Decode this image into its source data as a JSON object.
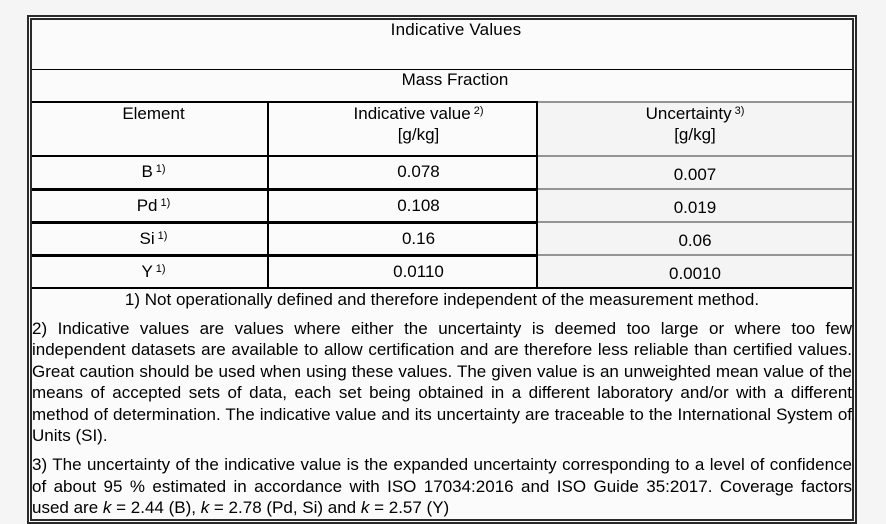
{
  "colors": {
    "page_background": "#f5f5f5",
    "table_background": "#fbfbfb",
    "uncertainty_column_background": "#f4f4f4",
    "border_black": "#000000",
    "border_gray": "#949494",
    "outer_double_border": "#2a2a2a"
  },
  "table": {
    "title": "Indicative Values",
    "subtitle": "Mass Fraction",
    "header": {
      "element": {
        "label": "Element"
      },
      "indicative": {
        "label": "Indicative value",
        "note": "2)",
        "unit": "[g/kg]"
      },
      "uncertainty": {
        "label": "Uncertainty",
        "note": "3)",
        "unit": "[g/kg]"
      }
    },
    "rows": [
      {
        "element": "B",
        "note": "1)",
        "indicative": "0.078",
        "uncertainty": "0.007"
      },
      {
        "element": "Pd",
        "note": "1)",
        "indicative": "0.108",
        "uncertainty": "0.019"
      },
      {
        "element": "Si",
        "note": "1)",
        "indicative": "0.16",
        "uncertainty": "0.06"
      },
      {
        "element": "Y",
        "note": "1)",
        "indicative": "0.0110",
        "uncertainty": "0.0010"
      }
    ],
    "footnotes": [
      {
        "segments": [
          {
            "t": "1) Not operationally defined and therefore independent of the measurement method.",
            "i": false
          }
        ]
      },
      {
        "segments": [
          {
            "t": "2) Indicative values are values where either the uncertainty is deemed too large or where too few independent datasets are available to allow certification and are therefore less reliable than certified values. Great caution should be used when using these values. The given value is an unweighted mean value of the means of accepted sets of data, each set being obtained in a different laboratory and/or with a different method of determination. The indicative value and its uncertainty are traceable to the International System of Units (SI).",
            "i": false
          }
        ]
      },
      {
        "segments": [
          {
            "t": "3) The uncertainty of the indicative value is the expanded uncertainty corresponding to a level of confidence of about 95 % estimated in accordance with ISO 17034:2016 and ISO Guide 35:2017. Coverage factors used are ",
            "i": false
          },
          {
            "t": "k",
            "i": true
          },
          {
            "t": " = 2.44 (B), ",
            "i": false
          },
          {
            "t": "k",
            "i": true
          },
          {
            "t": " = 2.78 (Pd, Si) and ",
            "i": false
          },
          {
            "t": "k",
            "i": true
          },
          {
            "t": " = 2.57 (Y)",
            "i": false
          }
        ]
      }
    ]
  }
}
